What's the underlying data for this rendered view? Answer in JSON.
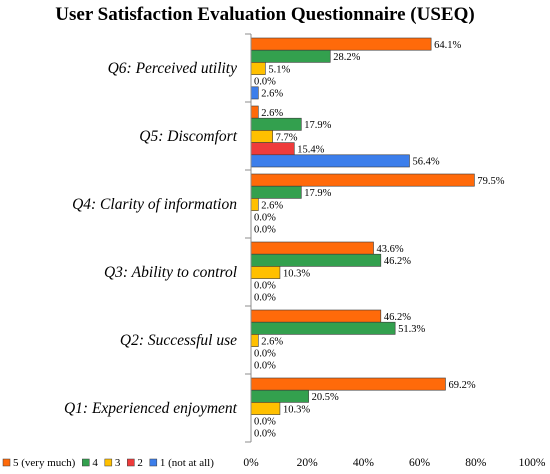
{
  "chart_data": {
    "type": "bar",
    "orientation": "horizontal",
    "title": "User Satisfaction Evaluation Questionnaire (USEQ)",
    "categories": [
      "Q6: Perceived utility",
      "Q5: Discomfort",
      "Q4: Clarity of information",
      "Q3: Ability to control",
      "Q2: Successful use",
      "Q1: Experienced enjoyment"
    ],
    "series": [
      {
        "name": "5 (very much)",
        "color": "#FF6A0A",
        "values": [
          64.1,
          2.6,
          79.5,
          43.6,
          46.2,
          69.2
        ],
        "labels": [
          "64.1%",
          "2.6%",
          "79.5%",
          "43.6%",
          "46.2%",
          "69.2%"
        ]
      },
      {
        "name": "4",
        "color": "#33A04E",
        "values": [
          28.2,
          17.9,
          17.9,
          46.2,
          51.3,
          20.5
        ],
        "labels": [
          "28.2%",
          "17.9%",
          "17.9%",
          "46.2%",
          "51.3%",
          "20.5%"
        ]
      },
      {
        "name": "3",
        "color": "#FFC000",
        "values": [
          5.1,
          7.7,
          2.6,
          10.3,
          2.6,
          10.3
        ],
        "labels": [
          "5.1%",
          "7.7%",
          "2.6%",
          "10.3%",
          "2.6%",
          "10.3%"
        ]
      },
      {
        "name": "2",
        "color": "#EE3B3B",
        "values": [
          0.0,
          15.4,
          0.0,
          0.0,
          0.0,
          0.0
        ],
        "labels": [
          "0.0%",
          "15.4%",
          "0.0%",
          "0.0%",
          "0.0%",
          "0.0%"
        ]
      },
      {
        "name": "1 (not at all)",
        "color": "#3C7EEB",
        "values": [
          2.6,
          56.4,
          0.0,
          0.0,
          0.0,
          0.0
        ],
        "labels": [
          "2.6%",
          "56.4%",
          "0.0%",
          "0.0%",
          "0.0%",
          "0.0%"
        ]
      }
    ],
    "xlim": [
      0,
      100
    ],
    "xticks": [
      0,
      20,
      40,
      60,
      80,
      100
    ],
    "xtick_labels": [
      "0%",
      "20%",
      "40%",
      "60%",
      "80%",
      "100%"
    ],
    "xlabel": "",
    "ylabel": "",
    "grid": false,
    "legend_position": "bottom-left"
  }
}
